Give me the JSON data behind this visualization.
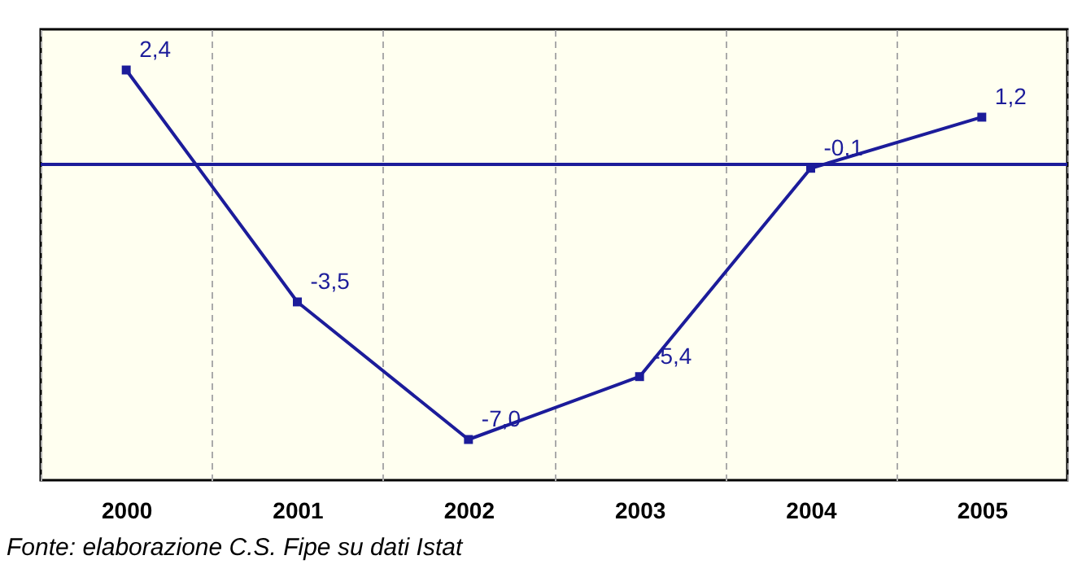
{
  "chart_data": {
    "type": "line",
    "categories": [
      "2000",
      "2001",
      "2002",
      "2003",
      "2004",
      "2005"
    ],
    "series": [
      {
        "color": "#1c1c9a",
        "values": [
          2.4,
          -3.5,
          -7.0,
          -5.4,
          -0.1,
          1.2
        ],
        "value_labels": [
          "2,4",
          "-3,5",
          "-7,0",
          "-5,4",
          "-0,1",
          "1,2"
        ]
      }
    ],
    "ref_lines": [
      {
        "axis": "y",
        "value": 0,
        "color": "#1c1c9a"
      }
    ],
    "grid": "x",
    "marker": "square",
    "line_style": "solid",
    "tick_labels": "x",
    "annotations": [
      "Fonte: elaborazione C.S. Fipe su dati Istat"
    ]
  }
}
